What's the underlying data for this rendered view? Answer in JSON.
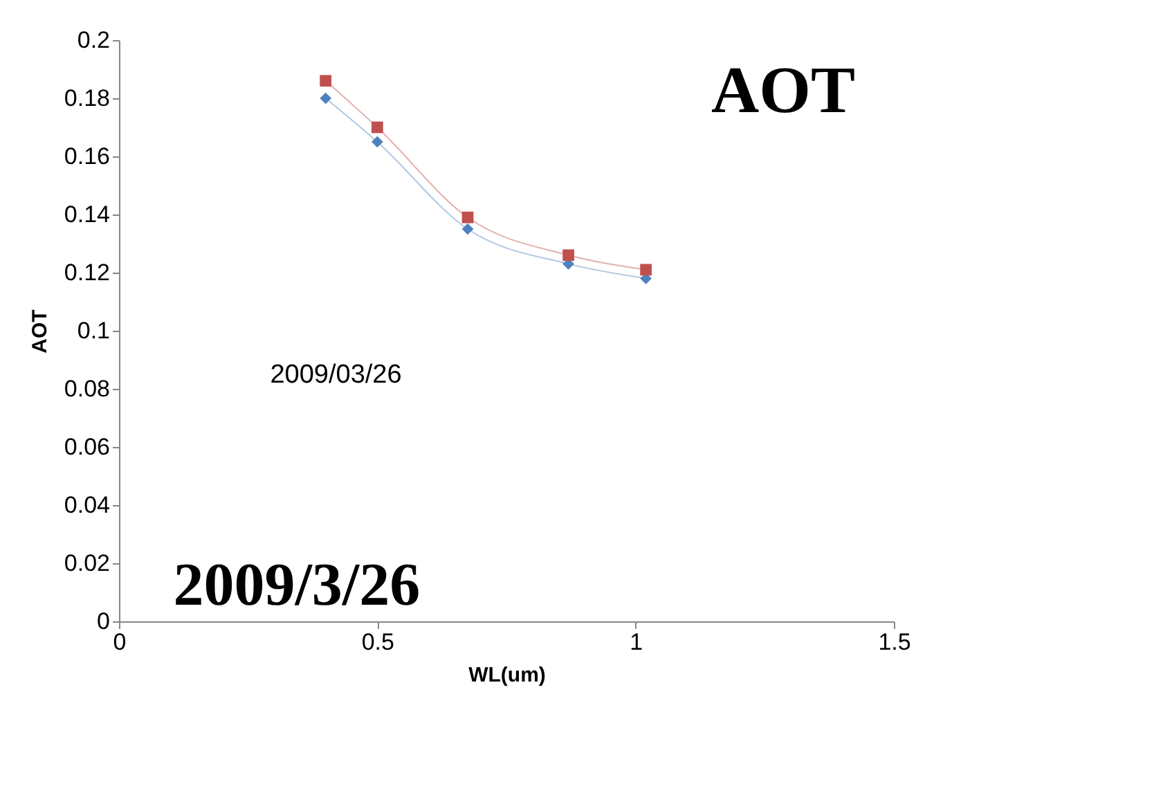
{
  "chart_data": {
    "type": "line",
    "xlabel": "WL(um)",
    "ylabel": "AOT",
    "x": [
      0.4,
      0.5,
      0.675,
      0.87,
      1.02
    ],
    "series": [
      {
        "color": "#4f81bd",
        "marker": "diamond",
        "values": [
          0.18,
          0.165,
          0.135,
          0.123,
          0.118
        ]
      },
      {
        "color": "#c0504d",
        "marker": "square",
        "values": [
          0.186,
          0.17,
          0.139,
          0.126,
          0.121
        ]
      }
    ],
    "xlim": [
      0,
      1.5
    ],
    "xticks": [
      0,
      0.5,
      1,
      1.5
    ],
    "ylim": [
      0,
      0.2
    ],
    "yticks": [
      0,
      0.02,
      0.04,
      0.06,
      0.08,
      0.1,
      0.12,
      0.14,
      0.16,
      0.18,
      0.2
    ],
    "grid": false,
    "legend": false,
    "annotations": [
      "AOT",
      "2009/3/26",
      "2009/03/26"
    ]
  }
}
